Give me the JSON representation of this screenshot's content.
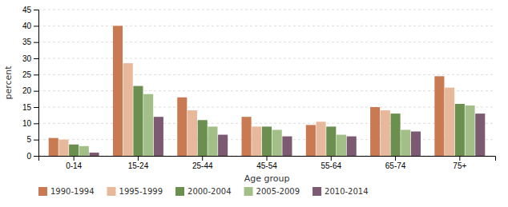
{
  "chart_data": {
    "type": "bar",
    "xlabel": "Age group",
    "ylabel": "percent",
    "categories": [
      "0-14",
      "15-24",
      "25-44",
      "45-54",
      "55-64",
      "65-74",
      "75+"
    ],
    "series": [
      {
        "name": "1990-1994",
        "color": "#c97a52",
        "values": [
          5.5,
          40.0,
          18.0,
          12.0,
          9.5,
          15.0,
          24.5
        ]
      },
      {
        "name": "1995-1999",
        "color": "#e8b89a",
        "values": [
          5.0,
          28.5,
          14.0,
          9.0,
          10.5,
          14.0,
          21.0
        ]
      },
      {
        "name": "2000-2004",
        "color": "#6b8f4e",
        "values": [
          3.5,
          21.5,
          11.0,
          9.0,
          9.0,
          13.0,
          16.0
        ]
      },
      {
        "name": "2005-2009",
        "color": "#a3bf88",
        "values": [
          3.0,
          19.0,
          9.0,
          8.0,
          6.5,
          8.0,
          15.5
        ]
      },
      {
        "name": "2010-2014",
        "color": "#7b5a72",
        "values": [
          1.0,
          12.0,
          6.5,
          6.0,
          6.0,
          7.5,
          13.0
        ]
      }
    ],
    "ylim": [
      0,
      45
    ],
    "yticks": [
      0,
      5,
      10,
      15,
      20,
      25,
      30,
      35,
      40,
      45
    ],
    "grid": true,
    "legend": "bottom"
  }
}
